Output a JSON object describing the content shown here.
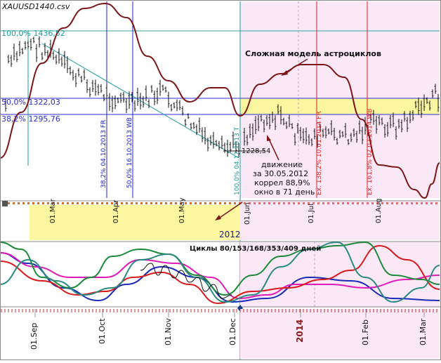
{
  "chart_title": "XAUUSD1440.csv",
  "fib_levels": [
    {
      "label": "100,0% 1436,52"
    },
    {
      "label": "50,0% 1322,03"
    },
    {
      "label": "38,2% 1295,76"
    }
  ],
  "vertical_markers": [
    "38,2% 04.10.2013 FR",
    "50,0% 16.10.2013 WB",
    "100,0% 04.12.2013 T",
    "Ex. 138,2% 10.01.2014 FR",
    "Ex. 161,8% 02.02.2014 WB"
  ],
  "price_tag": "1228,54",
  "annotations": {
    "model_label": "Сложная модель астроциклов",
    "movement_lines": [
      "движение",
      "за 30.05.2012",
      "коррел 88,9%",
      "окно в 71 день"
    ],
    "cycles_label": "Циклы 80/153/168/353/409 дней"
  },
  "year_2012": "2012",
  "timeline_2012": [
    "01.Mar",
    "01.Apr",
    "01.May",
    "01.Jun",
    "01.Jul",
    "01.Aug"
  ],
  "year_2014": "2014",
  "timeline_bottom": [
    "01.Sep",
    "01.Oct",
    "01.Nov",
    "01.Dec",
    "01.Feb",
    "01.Mar"
  ],
  "colors": {
    "pink_zone": "#fbe8f7",
    "yellow_band": "#fbf7a0",
    "fib_line": "#2e2ed8",
    "fib_100": "#3aa39a",
    "astro_curve": "#7c1616",
    "trend_line": "#1f9aa0",
    "marker_blue": "#2020d0",
    "marker_red": "#e02020",
    "candles": "#101010"
  }
}
